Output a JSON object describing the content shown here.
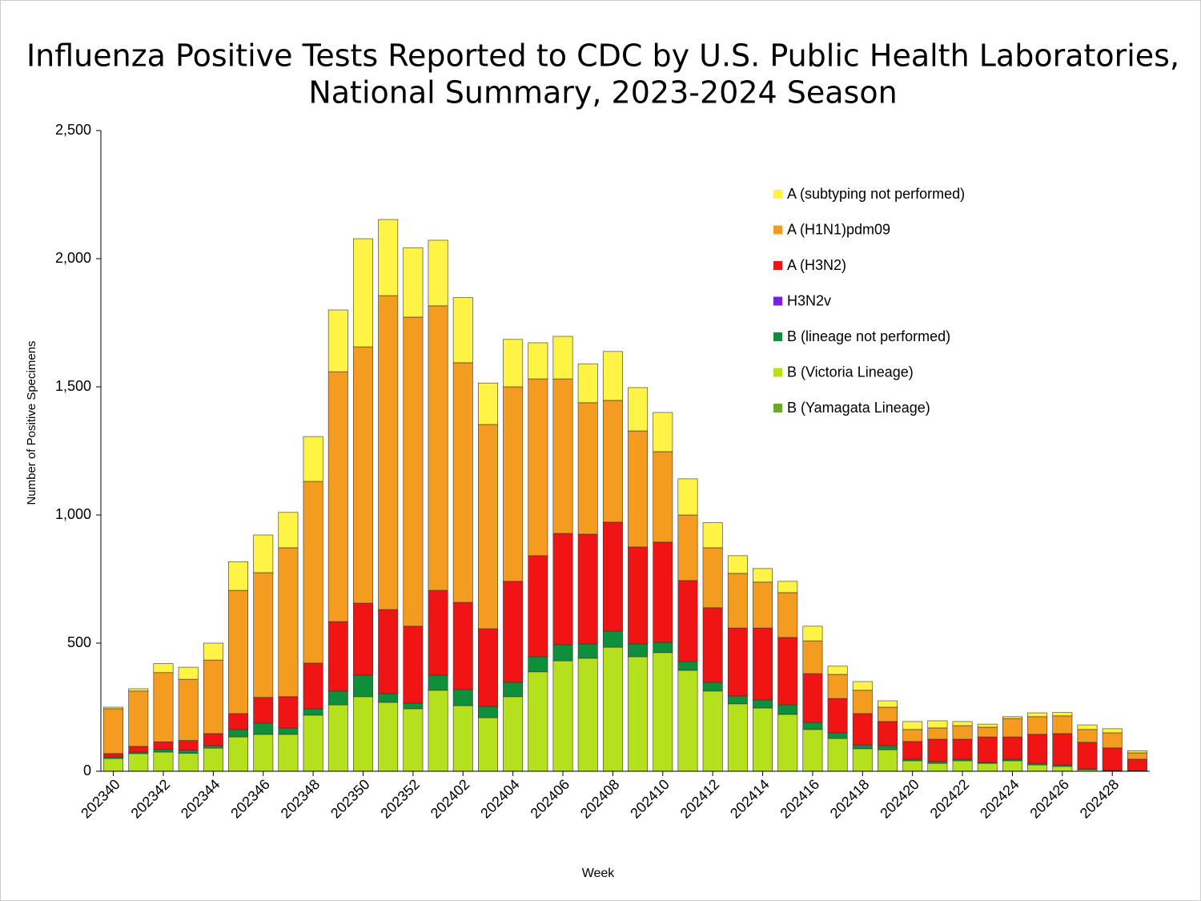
{
  "chart_data": {
    "type": "stacked_bar",
    "title": [
      "Influenza Positive Tests Reported to CDC by U.S. Public Health Laboratories,",
      "National Summary, 2023-2024 Season"
    ],
    "x_label": "Week",
    "y_label": "Number of Positive Specimens",
    "categories": [
      "202340",
      null,
      "202342",
      null,
      "202344",
      null,
      "202346",
      null,
      "202348",
      null,
      "202350",
      null,
      "202352",
      null,
      "202402",
      null,
      "202404",
      null,
      "202406",
      null,
      "202408",
      null,
      "202410",
      null,
      "202412",
      null,
      "202414",
      null,
      "202416",
      null,
      "202418",
      null,
      "202420",
      null,
      "202422",
      null,
      "202424",
      null,
      "202426",
      null,
      "202428",
      null
    ],
    "series": [
      {
        "name": "B (Yamagata Lineage)",
        "color": "#6aaa2a",
        "values": [
          0,
          0,
          0,
          0,
          0,
          0,
          0,
          0,
          0,
          0,
          0,
          0,
          0,
          0,
          0,
          0,
          0,
          0,
          0,
          0,
          0,
          0,
          0,
          0,
          0,
          0,
          0,
          0,
          0,
          0,
          0,
          0,
          0,
          0,
          0,
          0,
          0,
          0,
          0,
          0,
          0,
          0
        ]
      },
      {
        "name": "B (Victoria Lineage)",
        "color": "#b4e01e",
        "values": [
          50,
          69,
          75,
          70,
          90,
          134,
          144,
          144,
          219,
          259,
          291,
          269,
          244,
          316,
          256,
          209,
          291,
          388,
          431,
          441,
          484,
          447,
          463,
          394,
          313,
          263,
          247,
          222,
          163,
          128,
          88,
          84,
          41,
          31,
          41,
          31,
          41,
          25,
          19,
          6,
          2,
          2
        ]
      },
      {
        "name": "B (lineage not performed)",
        "color": "#0f8f3c",
        "values": [
          6,
          6,
          10,
          12,
          10,
          29,
          44,
          25,
          25,
          54,
          84,
          34,
          22,
          59,
          63,
          44,
          56,
          59,
          63,
          56,
          63,
          50,
          40,
          34,
          34,
          31,
          31,
          37,
          28,
          22,
          15,
          16,
          6,
          7,
          6,
          3,
          6,
          6,
          6,
          3,
          1,
          0
        ]
      },
      {
        "name": "H3N2v",
        "color": "#7a1fe0",
        "values": [
          0,
          0,
          0,
          0,
          0,
          0,
          0,
          0,
          0,
          0,
          0,
          0,
          0,
          0,
          0,
          0,
          0,
          0,
          0,
          0,
          0,
          0,
          0,
          0,
          0,
          0,
          0,
          0,
          0,
          0,
          0,
          0,
          0,
          0,
          0,
          0,
          0,
          0,
          0,
          0,
          0,
          0
        ]
      },
      {
        "name": "A (H3N2)",
        "color": "#f01414",
        "values": [
          13,
          22,
          30,
          38,
          47,
          62,
          100,
          122,
          178,
          271,
          281,
          328,
          300,
          331,
          340,
          303,
          394,
          394,
          434,
          428,
          425,
          378,
          391,
          316,
          291,
          265,
          281,
          263,
          190,
          134,
          122,
          94,
          69,
          87,
          78,
          100,
          87,
          113,
          122,
          104,
          88,
          45
        ]
      },
      {
        "name": "A (H1N1)pdm09",
        "color": "#f39c20",
        "values": [
          175,
          216,
          270,
          239,
          287,
          481,
          487,
          581,
          709,
          975,
          1000,
          1225,
          1206,
          1110,
          935,
          797,
          759,
          690,
          603,
          513,
          475,
          453,
          353,
          256,
          234,
          213,
          179,
          175,
          128,
          94,
          91,
          56,
          47,
          44,
          53,
          38,
          72,
          69,
          69,
          50,
          59,
          25
        ]
      },
      {
        "name": "A (subtyping not performed)",
        "color": "#fff345",
        "values": [
          6,
          9,
          35,
          47,
          66,
          112,
          147,
          138,
          175,
          241,
          422,
          297,
          271,
          256,
          254,
          162,
          185,
          141,
          166,
          152,
          191,
          169,
          153,
          141,
          98,
          69,
          53,
          44,
          57,
          32,
          34,
          25,
          31,
          28,
          16,
          12,
          7,
          15,
          13,
          18,
          16,
          8
        ]
      }
    ],
    "ylim": [
      0,
      2500
    ],
    "yticks": [
      0,
      500,
      {
        "value": 1000,
        "label": "1,000"
      },
      {
        "value": 1500,
        "label": "1,500"
      },
      {
        "value": 2000,
        "label": "2,000"
      },
      {
        "value": 2500,
        "label": "2,500"
      }
    ],
    "legend": "upper right"
  }
}
